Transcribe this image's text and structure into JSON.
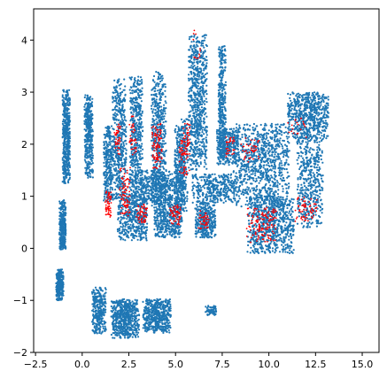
{
  "chart_data": {
    "type": "scatter",
    "title": "",
    "xlabel": "",
    "ylabel": "",
    "xlim": [
      -2.6,
      15.9
    ],
    "ylim": [
      -2.0,
      4.6
    ],
    "grid": false,
    "legend": "none",
    "x_ticks": [
      -2.5,
      0.0,
      2.5,
      5.0,
      7.5,
      10.0,
      12.5,
      15.0
    ],
    "x_tick_labels": [
      "−2.5",
      "0.0",
      "2.5",
      "5.0",
      "7.5",
      "10.0",
      "12.5",
      "15.0"
    ],
    "y_ticks": [
      -2,
      -1,
      0,
      1,
      2,
      3,
      4
    ],
    "y_tick_labels": [
      "−2",
      "−1",
      "0",
      "1",
      "2",
      "3",
      "4"
    ],
    "series": [
      {
        "color": "#1f77b4",
        "clusters": [
          {
            "cx": -1.2,
            "cy": -0.7,
            "w": 0.4,
            "h": 0.6,
            "n": 250
          },
          {
            "cx": -1.05,
            "cy": 0.45,
            "w": 0.35,
            "h": 0.95,
            "n": 300
          },
          {
            "cx": -0.85,
            "cy": 2.15,
            "w": 0.4,
            "h": 1.8,
            "n": 450
          },
          {
            "cx": 0.35,
            "cy": 2.15,
            "w": 0.45,
            "h": 1.6,
            "n": 380
          },
          {
            "cx": 0.9,
            "cy": -1.2,
            "w": 0.75,
            "h": 0.9,
            "n": 300
          },
          {
            "cx": 1.4,
            "cy": 1.6,
            "w": 0.5,
            "h": 1.5,
            "n": 280
          },
          {
            "cx": 2.3,
            "cy": -1.35,
            "w": 1.5,
            "h": 0.75,
            "n": 600
          },
          {
            "cx": 4.0,
            "cy": -1.3,
            "w": 1.5,
            "h": 0.65,
            "n": 500
          },
          {
            "cx": 2.0,
            "cy": 2.1,
            "w": 0.75,
            "h": 2.3,
            "n": 450
          },
          {
            "cx": 2.9,
            "cy": 2.25,
            "w": 0.7,
            "h": 2.1,
            "n": 420
          },
          {
            "cx": 4.1,
            "cy": 2.1,
            "w": 0.8,
            "h": 2.6,
            "n": 520
          },
          {
            "cx": 5.3,
            "cy": 1.6,
            "w": 0.7,
            "h": 1.8,
            "n": 420
          },
          {
            "cx": 6.2,
            "cy": 2.8,
            "w": 1.0,
            "h": 2.6,
            "n": 700
          },
          {
            "cx": 7.5,
            "cy": 2.8,
            "w": 0.4,
            "h": 2.2,
            "n": 350
          },
          {
            "cx": 2.7,
            "cy": 0.6,
            "w": 1.6,
            "h": 0.9,
            "n": 450
          },
          {
            "cx": 4.6,
            "cy": 0.6,
            "w": 1.5,
            "h": 0.8,
            "n": 420
          },
          {
            "cx": 6.6,
            "cy": 0.55,
            "w": 1.1,
            "h": 0.7,
            "n": 350
          },
          {
            "cx": 4.0,
            "cy": 1.2,
            "w": 3.0,
            "h": 0.6,
            "n": 500
          },
          {
            "cx": 7.1,
            "cy": 1.15,
            "w": 2.4,
            "h": 0.55,
            "n": 350
          },
          {
            "cx": 7.8,
            "cy": 1.95,
            "w": 1.2,
            "h": 0.7,
            "n": 300
          },
          {
            "cx": 9.6,
            "cy": 1.6,
            "w": 3.0,
            "h": 1.6,
            "n": 900
          },
          {
            "cx": 12.1,
            "cy": 2.55,
            "w": 2.2,
            "h": 0.9,
            "n": 600
          },
          {
            "cx": 10.1,
            "cy": 0.45,
            "w": 2.5,
            "h": 1.1,
            "n": 700
          },
          {
            "cx": 12.2,
            "cy": 1.3,
            "w": 1.4,
            "h": 1.8,
            "n": 450
          },
          {
            "cx": 6.9,
            "cy": -1.2,
            "w": 0.6,
            "h": 0.2,
            "n": 60
          }
        ]
      },
      {
        "color": "#ff0000",
        "clusters": [
          {
            "cx": 1.4,
            "cy": 0.85,
            "w": 0.35,
            "h": 0.5,
            "n": 60
          },
          {
            "cx": 2.3,
            "cy": 1.1,
            "w": 0.6,
            "h": 1.0,
            "n": 80
          },
          {
            "cx": 1.9,
            "cy": 2.1,
            "w": 0.35,
            "h": 0.6,
            "n": 40
          },
          {
            "cx": 2.7,
            "cy": 2.2,
            "w": 0.4,
            "h": 0.8,
            "n": 40
          },
          {
            "cx": 4.0,
            "cy": 1.95,
            "w": 0.55,
            "h": 0.9,
            "n": 90
          },
          {
            "cx": 5.5,
            "cy": 1.9,
            "w": 0.6,
            "h": 1.0,
            "n": 90
          },
          {
            "cx": 3.2,
            "cy": 0.65,
            "w": 0.6,
            "h": 0.4,
            "n": 50
          },
          {
            "cx": 5.0,
            "cy": 0.65,
            "w": 0.6,
            "h": 0.4,
            "n": 55
          },
          {
            "cx": 6.5,
            "cy": 0.55,
            "w": 0.6,
            "h": 0.35,
            "n": 40
          },
          {
            "cx": 7.9,
            "cy": 1.95,
            "w": 0.5,
            "h": 0.4,
            "n": 30
          },
          {
            "cx": 9.0,
            "cy": 1.9,
            "w": 1.0,
            "h": 0.5,
            "n": 40
          },
          {
            "cx": 9.6,
            "cy": 0.45,
            "w": 1.6,
            "h": 0.7,
            "n": 130
          },
          {
            "cx": 12.0,
            "cy": 0.75,
            "w": 1.2,
            "h": 0.5,
            "n": 60
          },
          {
            "cx": 11.5,
            "cy": 2.3,
            "w": 1.0,
            "h": 0.4,
            "n": 20
          },
          {
            "cx": 6.2,
            "cy": 3.7,
            "w": 0.4,
            "h": 0.4,
            "n": 8
          },
          {
            "cx": 6.0,
            "cy": 4.1,
            "w": 0.2,
            "h": 0.2,
            "n": 4
          }
        ]
      }
    ]
  }
}
